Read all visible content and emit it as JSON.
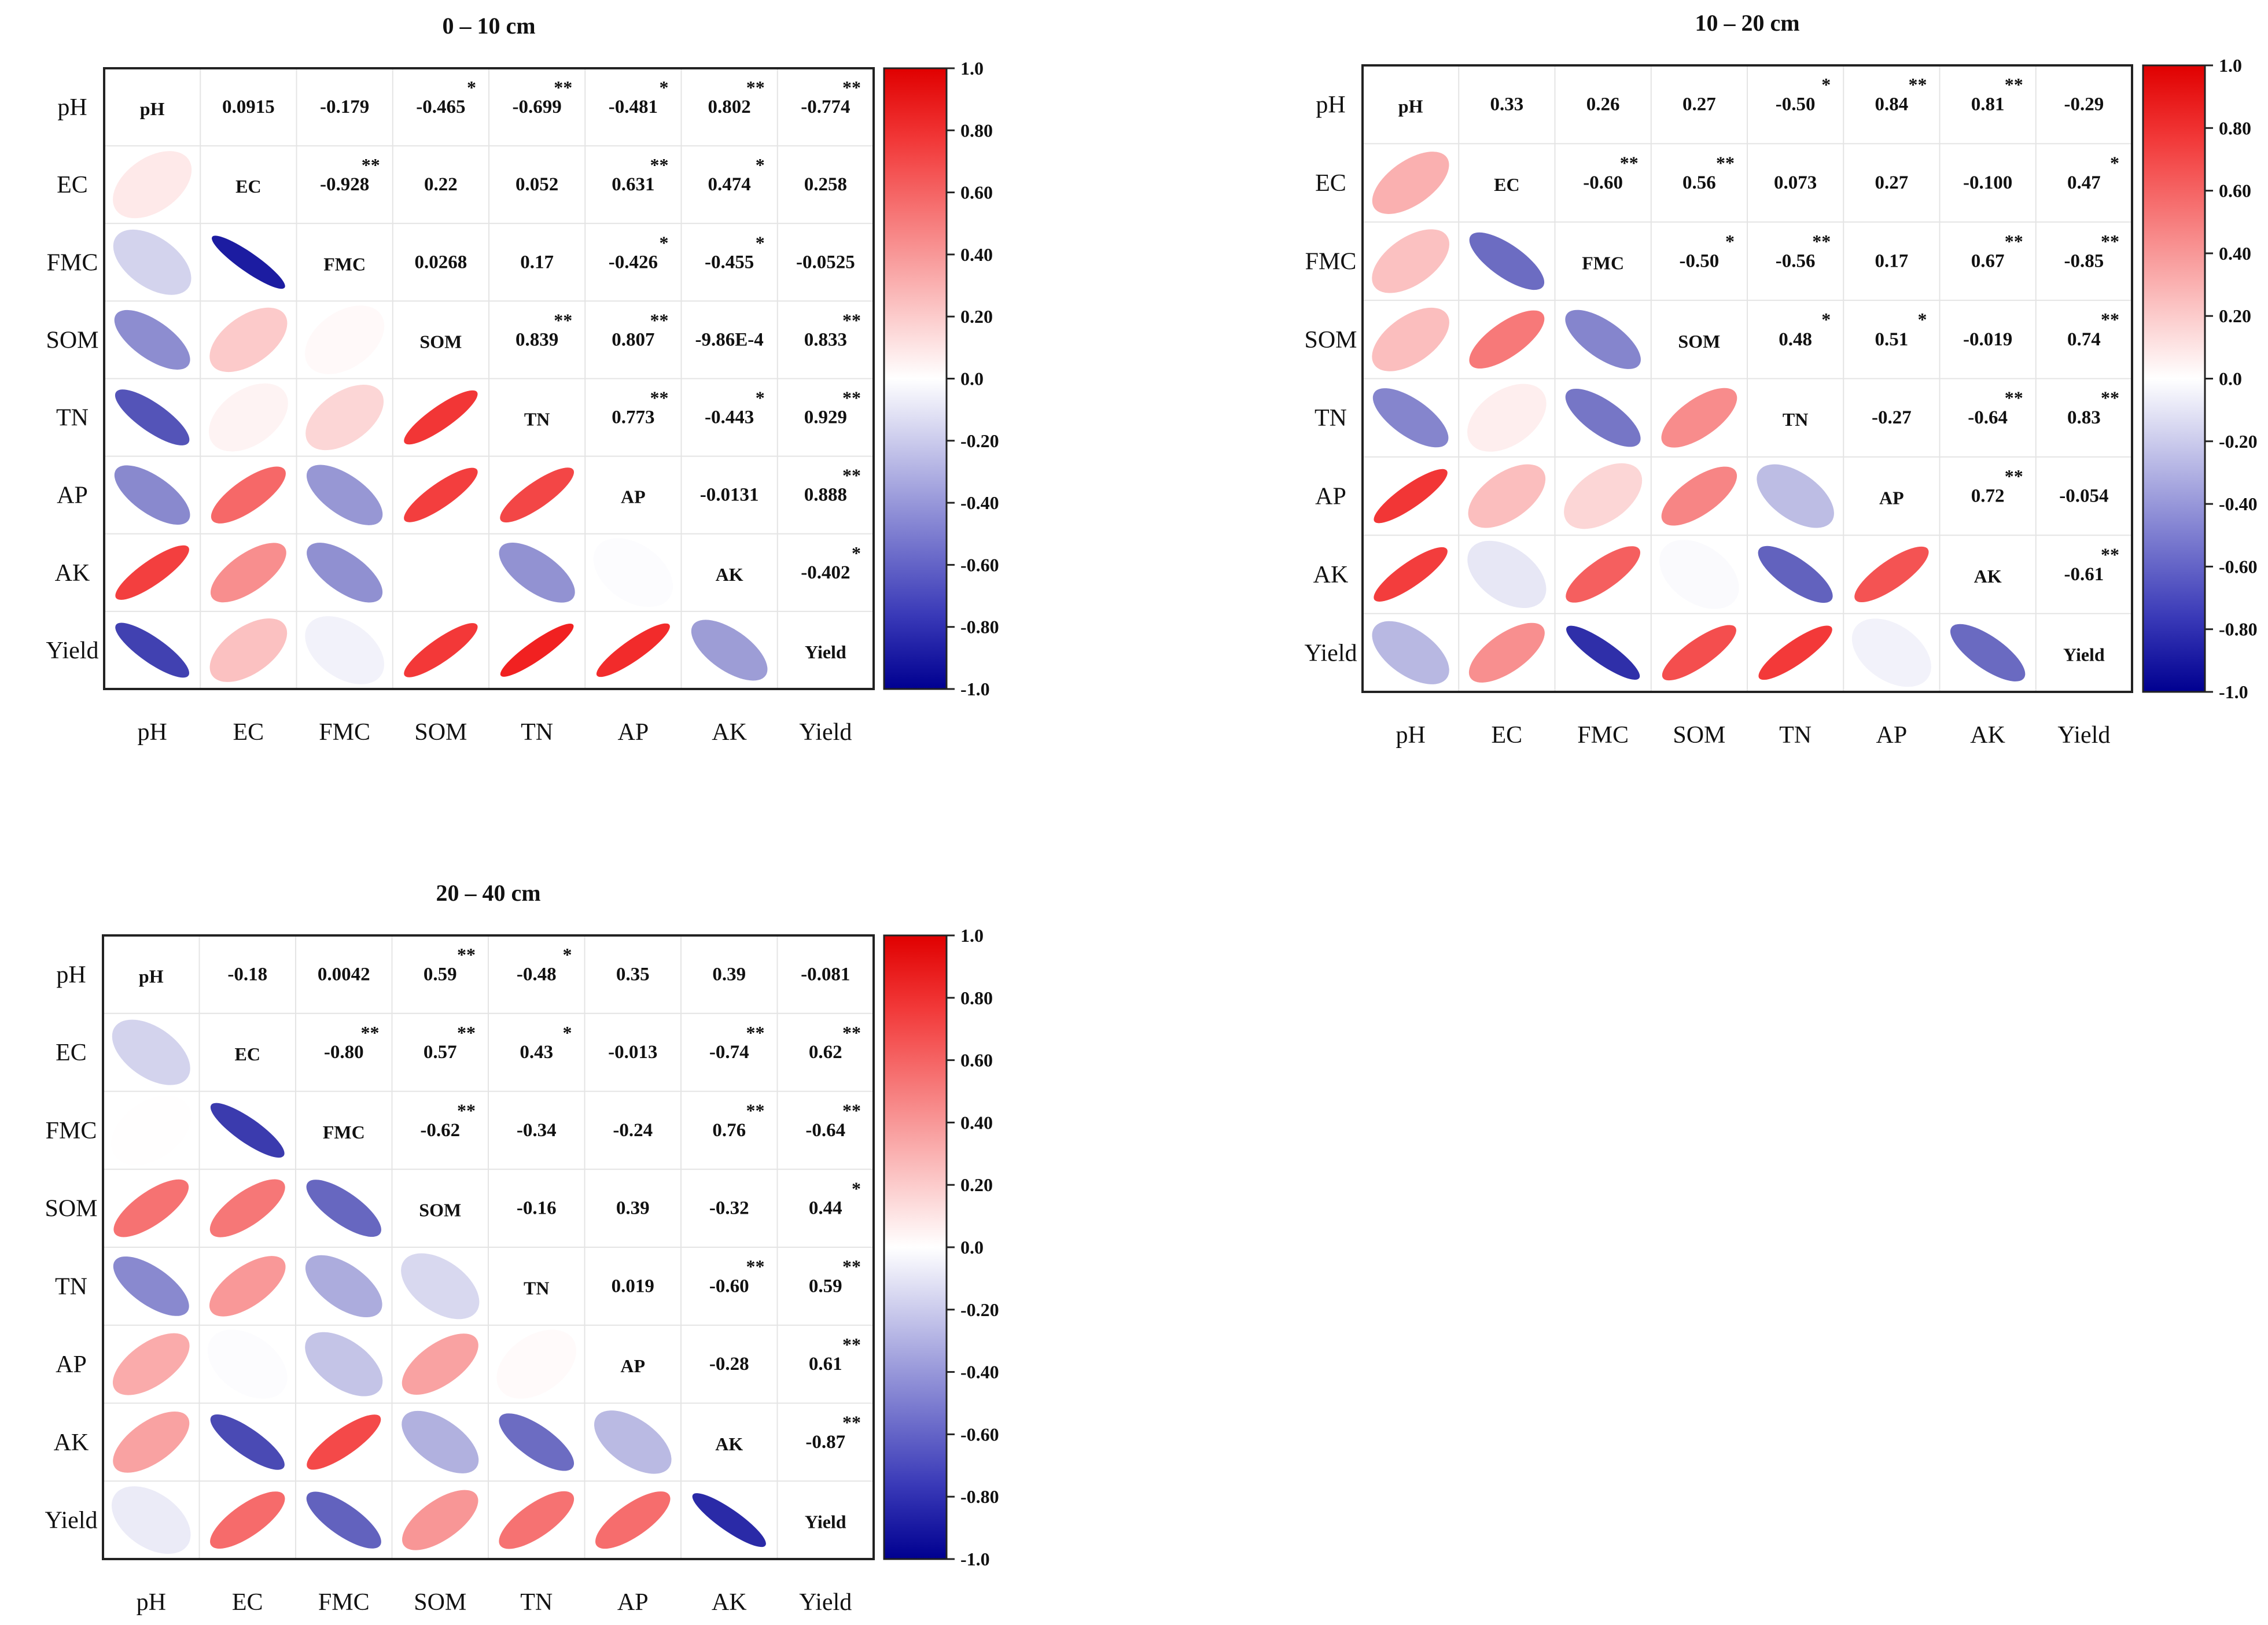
{
  "chart_data": [
    {
      "type": "heatmap",
      "title": "0 – 10 cm",
      "variables": [
        "pH",
        "EC",
        "FMC",
        "SOM",
        "TN",
        "AP",
        "AK",
        "Yield"
      ],
      "upper_labels": [
        [
          "pH",
          "0.0915",
          "-0.179",
          "-0.465",
          "-0.699",
          "-0.481",
          "0.802",
          "-0.774"
        ],
        [
          "",
          "EC",
          "-0.928",
          "0.22",
          "0.052",
          "0.631",
          "0.474",
          "0.258"
        ],
        [
          "",
          "",
          "FMC",
          "0.0268",
          "0.17",
          "-0.426",
          "-0.455",
          "-0.0525"
        ],
        [
          "",
          "",
          "",
          "SOM",
          "0.839",
          "0.807",
          "-9.86E-4",
          "0.833"
        ],
        [
          "",
          "",
          "",
          "",
          "TN",
          "0.773",
          "-0.443",
          "0.929"
        ],
        [
          "",
          "",
          "",
          "",
          "",
          "AP",
          "-0.0131",
          "0.888"
        ],
        [
          "",
          "",
          "",
          "",
          "",
          "",
          "AK",
          "-0.402"
        ],
        [
          "",
          "",
          "",
          "",
          "",
          "",
          "",
          "Yield"
        ]
      ],
      "significance": [
        [
          "",
          "",
          "",
          "*",
          "**",
          "*",
          "**",
          "**"
        ],
        [
          "",
          "",
          "**",
          "",
          "",
          "**",
          "*",
          ""
        ],
        [
          "",
          "",
          "",
          "",
          "",
          "*",
          "*",
          ""
        ],
        [
          "",
          "",
          "",
          "",
          "**",
          "**",
          "",
          "**"
        ],
        [
          "",
          "",
          "",
          "",
          "",
          "**",
          "*",
          "**"
        ],
        [
          "",
          "",
          "",
          "",
          "",
          "",
          "",
          "**"
        ],
        [
          "",
          "",
          "",
          "",
          "",
          "",
          "",
          "*"
        ],
        [
          "",
          "",
          "",
          "",
          "",
          "",
          "",
          ""
        ]
      ],
      "colorbar": {
        "range": [
          -1.0,
          1.0
        ],
        "ticks": [
          "1.0",
          "0.80",
          "0.60",
          "0.40",
          "0.20",
          "0.0",
          "-0.20",
          "-0.40",
          "-0.60",
          "-0.80",
          "-1.0"
        ],
        "low_color": "#0a0a9a",
        "mid_color": "#ffffff",
        "high_color": "#f01010"
      }
    },
    {
      "type": "heatmap",
      "title": "10 – 20 cm",
      "variables": [
        "pH",
        "EC",
        "FMC",
        "SOM",
        "TN",
        "AP",
        "AK",
        "Yield"
      ],
      "upper_labels": [
        [
          "pH",
          "0.33",
          "0.26",
          "0.27",
          "-0.50",
          "0.84",
          "0.81",
          "-0.29"
        ],
        [
          "",
          "EC",
          "-0.60",
          "0.56",
          "0.073",
          "0.27",
          "-0.100",
          "0.47"
        ],
        [
          "",
          "",
          "FMC",
          "-0.50",
          "-0.56",
          "0.17",
          "0.67",
          "-0.85"
        ],
        [
          "",
          "",
          "",
          "SOM",
          "0.48",
          "0.51",
          "-0.019",
          "0.74"
        ],
        [
          "",
          "",
          "",
          "",
          "TN",
          "-0.27",
          "-0.64",
          "0.83"
        ],
        [
          "",
          "",
          "",
          "",
          "",
          "AP",
          "0.72",
          "-0.054"
        ],
        [
          "",
          "",
          "",
          "",
          "",
          "",
          "AK",
          "-0.61"
        ],
        [
          "",
          "",
          "",
          "",
          "",
          "",
          "",
          "Yield"
        ]
      ],
      "significance": [
        [
          "",
          "",
          "",
          "",
          "*",
          "**",
          "**",
          ""
        ],
        [
          "",
          "",
          "**",
          "**",
          "",
          "",
          "",
          "*"
        ],
        [
          "",
          "",
          "",
          "*",
          "**",
          "",
          "**",
          "**"
        ],
        [
          "",
          "",
          "",
          "",
          "*",
          "*",
          "",
          "**"
        ],
        [
          "",
          "",
          "",
          "",
          "",
          "",
          "**",
          "**"
        ],
        [
          "",
          "",
          "",
          "",
          "",
          "",
          "**",
          ""
        ],
        [
          "",
          "",
          "",
          "",
          "",
          "",
          "",
          "**"
        ],
        [
          "",
          "",
          "",
          "",
          "",
          "",
          "",
          ""
        ]
      ],
      "colorbar": {
        "range": [
          -1.0,
          1.0
        ],
        "ticks": [
          "1.0",
          "0.80",
          "0.60",
          "0.40",
          "0.20",
          "0.0",
          "-0.20",
          "-0.40",
          "-0.60",
          "-0.80",
          "-1.0"
        ],
        "low_color": "#0a0a9a",
        "mid_color": "#ffffff",
        "high_color": "#f01010"
      }
    },
    {
      "type": "heatmap",
      "title": "20 – 40 cm",
      "variables": [
        "pH",
        "EC",
        "FMC",
        "SOM",
        "TN",
        "AP",
        "AK",
        "Yield"
      ],
      "upper_labels": [
        [
          "pH",
          "-0.18",
          "0.0042",
          "0.59",
          "-0.48",
          "0.35",
          "0.39",
          "-0.081"
        ],
        [
          "",
          "EC",
          "-0.80",
          "0.57",
          "0.43",
          "-0.013",
          "-0.74",
          "0.62"
        ],
        [
          "",
          "",
          "FMC",
          "-0.62",
          "-0.34",
          "-0.24",
          "0.76",
          "-0.64"
        ],
        [
          "",
          "",
          "",
          "SOM",
          "-0.16",
          "0.39",
          "-0.32",
          "0.44"
        ],
        [
          "",
          "",
          "",
          "",
          "TN",
          "0.019",
          "-0.60",
          "0.59"
        ],
        [
          "",
          "",
          "",
          "",
          "",
          "AP",
          "-0.28",
          "0.61"
        ],
        [
          "",
          "",
          "",
          "",
          "",
          "",
          "AK",
          "-0.87"
        ],
        [
          "",
          "",
          "",
          "",
          "",
          "",
          "",
          "Yield"
        ]
      ],
      "significance": [
        [
          "",
          "",
          "",
          "**",
          "*",
          "",
          "",
          ""
        ],
        [
          "",
          "",
          "**",
          "**",
          "*",
          "",
          "**",
          "**"
        ],
        [
          "",
          "",
          "",
          "**",
          "",
          "",
          "**",
          "**"
        ],
        [
          "",
          "",
          "",
          "",
          "",
          "",
          "",
          "*"
        ],
        [
          "",
          "",
          "",
          "",
          "",
          "",
          "**",
          "**"
        ],
        [
          "",
          "",
          "",
          "",
          "",
          "",
          "",
          "**"
        ],
        [
          "",
          "",
          "",
          "",
          "",
          "",
          "",
          "**"
        ],
        [
          "",
          "",
          "",
          "",
          "",
          "",
          "",
          ""
        ]
      ],
      "colorbar": {
        "range": [
          -1.0,
          1.0
        ],
        "ticks": [
          "1.0",
          "0.80",
          "0.60",
          "0.40",
          "0.20",
          "0.0",
          "-0.20",
          "-0.40",
          "-0.60",
          "-0.80",
          "-1.0"
        ],
        "low_color": "#0a0a9a",
        "mid_color": "#ffffff",
        "high_color": "#f01010"
      }
    }
  ]
}
